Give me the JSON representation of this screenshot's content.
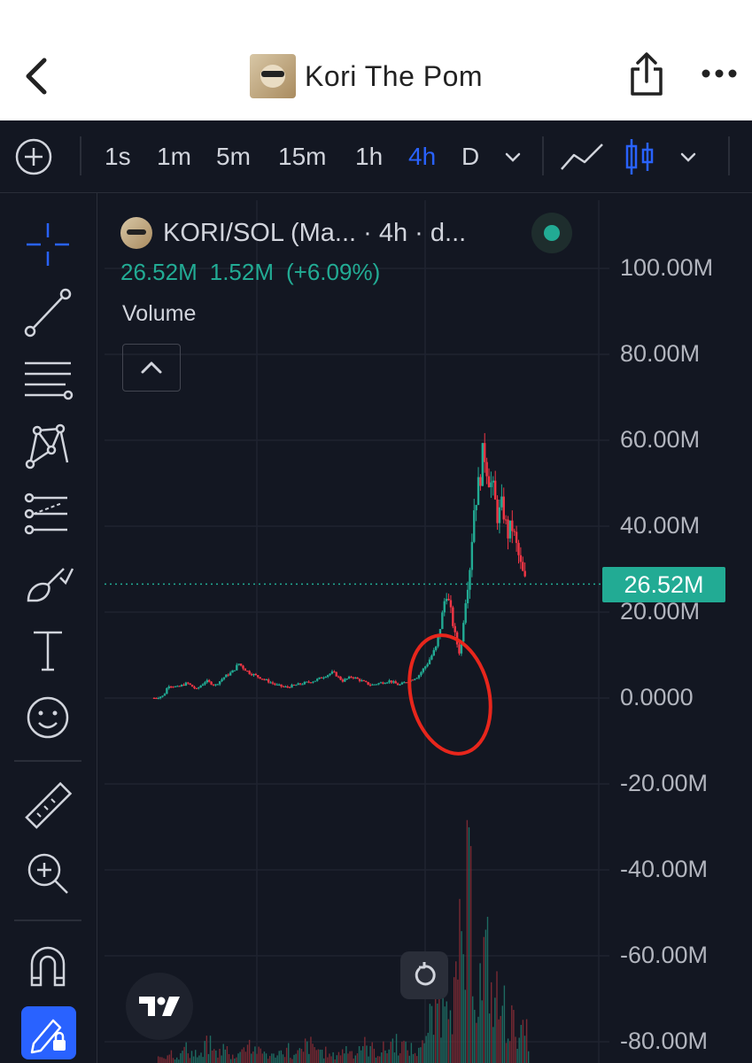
{
  "header": {
    "title": "Kori The Pom"
  },
  "toolbar": {
    "intervals": [
      {
        "label": "1s",
        "active": false
      },
      {
        "label": "1m",
        "active": false
      },
      {
        "label": "5m",
        "active": false
      },
      {
        "label": "15m",
        "active": false
      },
      {
        "label": "1h",
        "active": false
      },
      {
        "label": "4h",
        "active": true
      },
      {
        "label": "D",
        "active": false
      }
    ]
  },
  "legend": {
    "symbol_title": "KORI/SOL (Ma... · 4h · d...",
    "last_value": "26.52M",
    "change": "1.52M",
    "change_pct": "(+6.09%)",
    "volume_label": "Volume"
  },
  "price_axis": {
    "labels": [
      "100.00M",
      "80.00M",
      "60.00M",
      "40.00M",
      "20.00M",
      "0.0000",
      "-20.00M",
      "-40.00M",
      "-60.00M",
      "-80.00M"
    ],
    "last_price_tag": "26.52M"
  },
  "colors": {
    "up": "#22ab94",
    "down": "#f23645",
    "accent": "#2962ff",
    "background": "#131722",
    "annotation": "#e8261c"
  },
  "chart_data": {
    "type": "candlestick",
    "y_range": [
      -80,
      100
    ],
    "y_unit": "M",
    "last_price": 26.52,
    "price_trace": [
      [
        0,
        0
      ],
      [
        4,
        0.5
      ],
      [
        6,
        3
      ],
      [
        10,
        2.5
      ],
      [
        14,
        3.5
      ],
      [
        18,
        2
      ],
      [
        22,
        4
      ],
      [
        26,
        3
      ],
      [
        30,
        5
      ],
      [
        33,
        6
      ],
      [
        36,
        8
      ],
      [
        40,
        6
      ],
      [
        44,
        5
      ],
      [
        48,
        4
      ],
      [
        52,
        3
      ],
      [
        56,
        2.5
      ],
      [
        60,
        3
      ],
      [
        64,
        3.5
      ],
      [
        68,
        4
      ],
      [
        72,
        5
      ],
      [
        76,
        6
      ],
      [
        80,
        4
      ],
      [
        84,
        5
      ],
      [
        88,
        4
      ],
      [
        92,
        3
      ],
      [
        96,
        3.5
      ],
      [
        100,
        4
      ],
      [
        104,
        3
      ],
      [
        108,
        4
      ],
      [
        112,
        5
      ],
      [
        116,
        8
      ],
      [
        120,
        12
      ],
      [
        122,
        18
      ],
      [
        124,
        25
      ],
      [
        126,
        20
      ],
      [
        128,
        14
      ],
      [
        130,
        10
      ],
      [
        132,
        22
      ],
      [
        134,
        30
      ],
      [
        136,
        45
      ],
      [
        138,
        50
      ],
      [
        140,
        58
      ],
      [
        142,
        52
      ],
      [
        144,
        48
      ],
      [
        146,
        42
      ],
      [
        148,
        45
      ],
      [
        150,
        38
      ],
      [
        152,
        40
      ],
      [
        154,
        35
      ],
      [
        156,
        30
      ],
      [
        158,
        26.5
      ]
    ],
    "trace_x_max": 158,
    "volume_bars": [
      2,
      3,
      2,
      4,
      3,
      2,
      5,
      3,
      4,
      2,
      3,
      6,
      4,
      3,
      2,
      3,
      4,
      2,
      3,
      5,
      4,
      3,
      2,
      3,
      4,
      3,
      5,
      4,
      3,
      4,
      6,
      5,
      4,
      3,
      8,
      12,
      18,
      26,
      20,
      30,
      44,
      22,
      28,
      18,
      15,
      12,
      10,
      8
    ]
  },
  "icons": {
    "left_panel": [
      "crosshair-icon",
      "trend-line-icon",
      "fib-retracement-icon",
      "pattern-icon",
      "prediction-icon",
      "brush-icon",
      "text-icon",
      "emoji-icon",
      "ruler-icon",
      "zoom-in-icon",
      "magnet-icon",
      "pencil-lock-icon"
    ]
  }
}
